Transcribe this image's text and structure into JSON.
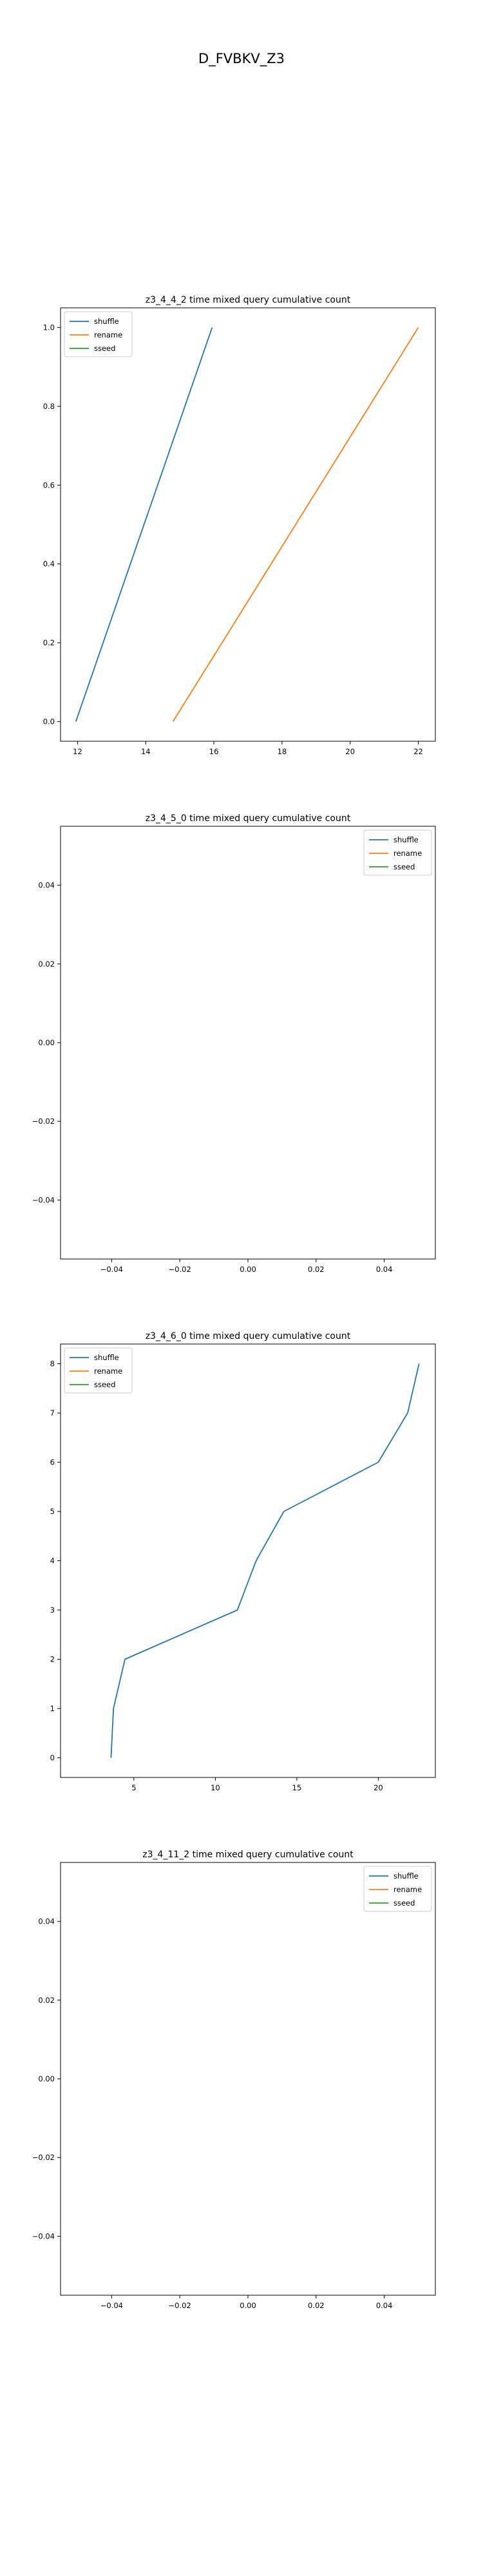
{
  "figure": {
    "suptitle": "D_FVBKV_Z3"
  },
  "colors": {
    "shuffle": "#1f77b4",
    "rename": "#ff7f0e",
    "sseed": "#2ca02c"
  },
  "chart_data": [
    {
      "type": "line",
      "title": "z3_4_4_2 time mixed query cumulative count",
      "xlabel": "",
      "ylabel": "",
      "xlim": [
        11.5,
        22.5
      ],
      "ylim": [
        -0.05,
        1.05
      ],
      "xticks": [
        12,
        14,
        16,
        18,
        20,
        22
      ],
      "xtick_labels": [
        "12",
        "14",
        "16",
        "18",
        "20",
        "22"
      ],
      "yticks": [
        0.0,
        0.2,
        0.4,
        0.6,
        0.8,
        1.0
      ],
      "ytick_labels": [
        "0.0",
        "0.2",
        "0.4",
        "0.6",
        "0.8",
        "1.0"
      ],
      "legend": "top-left",
      "grid": false,
      "series": [
        {
          "name": "shuffle",
          "color": "#1f77b4",
          "x": [
            11.95,
            15.95
          ],
          "y": [
            0,
            1
          ]
        },
        {
          "name": "rename",
          "color": "#ff7f0e",
          "x": [
            14.8,
            22.0
          ],
          "y": [
            0,
            1
          ]
        },
        {
          "name": "sseed",
          "color": "#2ca02c",
          "x": [],
          "y": []
        }
      ]
    },
    {
      "type": "line",
      "title": "z3_4_5_0 time mixed query cumulative count",
      "xlabel": "",
      "ylabel": "",
      "xlim": [
        -0.055,
        0.055
      ],
      "ylim": [
        -0.055,
        0.055
      ],
      "xticks": [
        -0.04,
        -0.02,
        0.0,
        0.02,
        0.04
      ],
      "xtick_labels": [
        "−0.04",
        "−0.02",
        "0.00",
        "0.02",
        "0.04"
      ],
      "yticks": [
        -0.04,
        -0.02,
        0.0,
        0.02,
        0.04
      ],
      "ytick_labels": [
        "−0.04",
        "−0.02",
        "0.00",
        "0.02",
        "0.04"
      ],
      "legend": "top-right",
      "grid": false,
      "series": [
        {
          "name": "shuffle",
          "color": "#1f77b4",
          "x": [],
          "y": []
        },
        {
          "name": "rename",
          "color": "#ff7f0e",
          "x": [],
          "y": []
        },
        {
          "name": "sseed",
          "color": "#2ca02c",
          "x": [],
          "y": []
        }
      ]
    },
    {
      "type": "line",
      "title": "z3_4_6_0 time mixed query cumulative count",
      "xlabel": "",
      "ylabel": "",
      "xlim": [
        0.5,
        23.5
      ],
      "ylim": [
        -0.4,
        8.4
      ],
      "xticks": [
        5,
        10,
        15,
        20
      ],
      "xtick_labels": [
        "5",
        "10",
        "15",
        "20"
      ],
      "yticks": [
        0,
        1,
        2,
        3,
        4,
        5,
        6,
        7,
        8
      ],
      "ytick_labels": [
        "0",
        "1",
        "2",
        "3",
        "4",
        "5",
        "6",
        "7",
        "8"
      ],
      "legend": "top-left",
      "grid": false,
      "series": [
        {
          "name": "shuffle",
          "color": "#1f77b4",
          "x": [
            3.6,
            3.75,
            4.45,
            11.35,
            12.5,
            14.2,
            20.0,
            21.8,
            22.5
          ],
          "y": [
            0,
            1,
            2,
            3,
            4,
            5,
            6,
            7,
            8
          ]
        },
        {
          "name": "rename",
          "color": "#ff7f0e",
          "x": [],
          "y": []
        },
        {
          "name": "sseed",
          "color": "#2ca02c",
          "x": [],
          "y": []
        }
      ]
    },
    {
      "type": "line",
      "title": "z3_4_11_2 time mixed query cumulative count",
      "xlabel": "",
      "ylabel": "",
      "xlim": [
        -0.055,
        0.055
      ],
      "ylim": [
        -0.055,
        0.055
      ],
      "xticks": [
        -0.04,
        -0.02,
        0.0,
        0.02,
        0.04
      ],
      "xtick_labels": [
        "−0.04",
        "−0.02",
        "0.00",
        "0.02",
        "0.04"
      ],
      "yticks": [
        -0.04,
        -0.02,
        0.0,
        0.02,
        0.04
      ],
      "ytick_labels": [
        "−0.04",
        "−0.02",
        "0.00",
        "0.02",
        "0.04"
      ],
      "legend": "top-right",
      "grid": false,
      "series": [
        {
          "name": "shuffle",
          "color": "#1f77b4",
          "x": [],
          "y": []
        },
        {
          "name": "rename",
          "color": "#ff7f0e",
          "x": [],
          "y": []
        },
        {
          "name": "sseed",
          "color": "#2ca02c",
          "x": [],
          "y": []
        }
      ]
    }
  ]
}
